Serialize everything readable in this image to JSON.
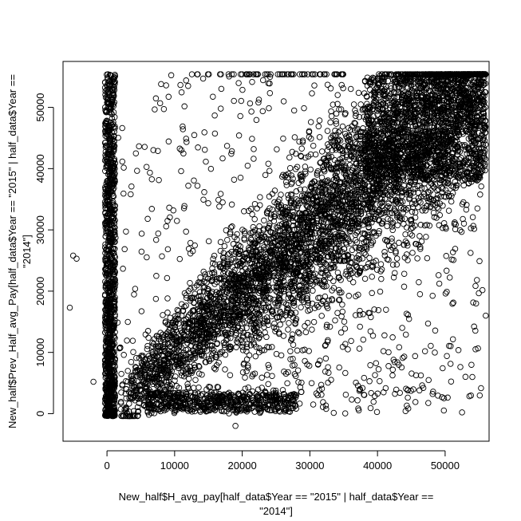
{
  "chart_data": {
    "type": "scatter",
    "title": "",
    "xlabel": {
      "line1": "New_half$H_avg_pay[half_data$Year == \"2015\" | half_data$Year ==",
      "line2": "\"2014\"]"
    },
    "ylabel": {
      "line1": "New_half$Prev_Half_avg_Pay[half_data$Year == \"2015\" | half_data$Year ==",
      "line2": "\"2014\"]"
    },
    "xlim": [
      -6500,
      56500
    ],
    "ylim": [
      -4500,
      57500
    ],
    "x_ticks": [
      0,
      10000,
      20000,
      30000,
      40000,
      50000
    ],
    "x_tick_labels": [
      "0",
      "10000",
      "20000",
      "30000",
      "40000",
      "50000"
    ],
    "y_ticks": [
      0,
      10000,
      20000,
      30000,
      40000,
      50000
    ],
    "y_tick_labels": [
      "0",
      "10000",
      "20000",
      "30000",
      "40000",
      "50000"
    ],
    "grid": false,
    "marker": "open-circle",
    "colors": {
      "points": "#000000",
      "axes": "#000000",
      "background": "#ffffff"
    },
    "notable_points": [
      {
        "x": -5500,
        "y": 17300
      },
      {
        "x": -5000,
        "y": 25800
      },
      {
        "x": -4500,
        "y": 25300
      },
      {
        "x": -2000,
        "y": 5200
      },
      {
        "x": 8000,
        "y": 53800
      },
      {
        "x": 12000,
        "y": 53500
      },
      {
        "x": 19000,
        "y": -2000
      },
      {
        "x": 52500,
        "y": 200
      },
      {
        "x": 54500,
        "y": 10500
      },
      {
        "x": 56000,
        "y": 16000
      },
      {
        "x": 500,
        "y": 55200
      },
      {
        "x": 1200,
        "y": 55100
      }
    ],
    "structure": {
      "main_band": "dense cloud along the diagonal y ≈ x, widening with x and saturating near 55000",
      "vertical_band_x": 0,
      "bottom_streak_y": 1500
    }
  }
}
